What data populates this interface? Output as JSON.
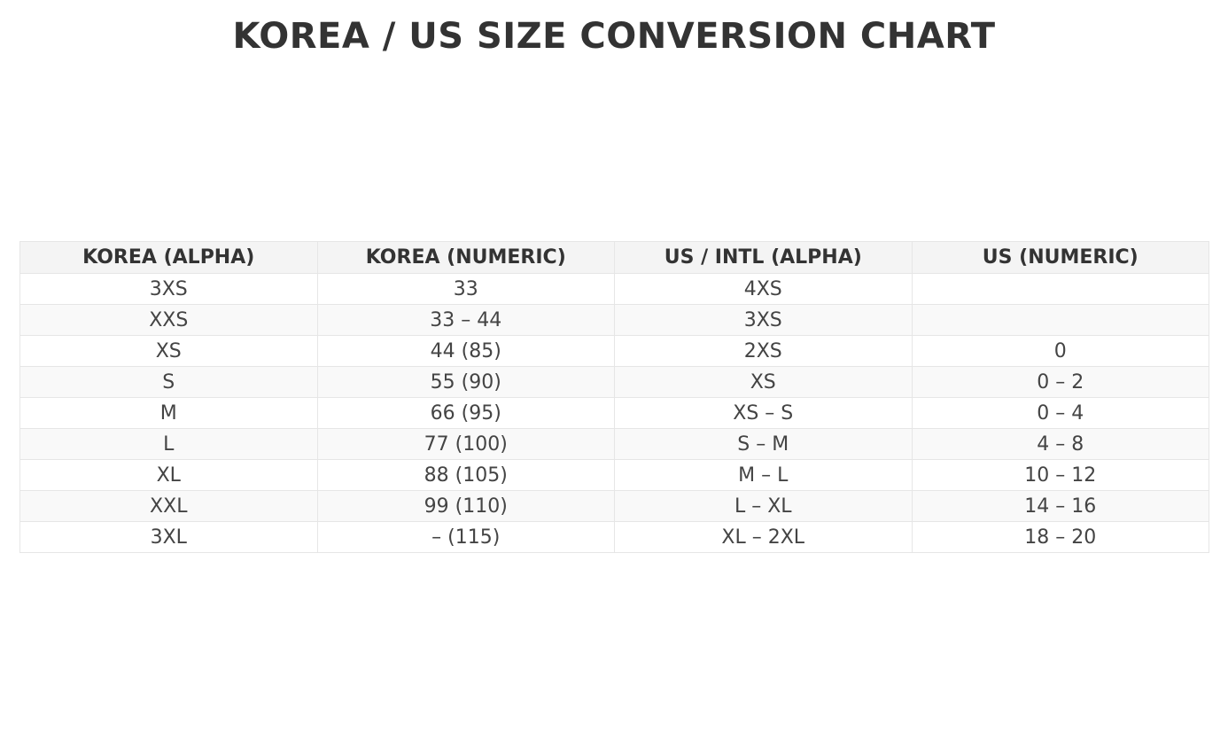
{
  "chart_data": {
    "type": "table",
    "title": "KOREA / US SIZE CONVERSION CHART",
    "columns": [
      "KOREA (ALPHA)",
      "KOREA (NUMERIC)",
      "US / INTL (ALPHA)",
      "US (NUMERIC)"
    ],
    "rows": [
      [
        "3XS",
        "33",
        "4XS",
        ""
      ],
      [
        "XXS",
        "33 – 44",
        "3XS",
        ""
      ],
      [
        "XS",
        "44 (85)",
        "2XS",
        "0"
      ],
      [
        "S",
        "55 (90)",
        "XS",
        "0 – 2"
      ],
      [
        "M",
        "66 (95)",
        "XS – S",
        "0 – 4"
      ],
      [
        "L",
        "77 (100)",
        "S – M",
        "4 – 8"
      ],
      [
        "XL",
        "88 (105)",
        "M – L",
        "10 – 12"
      ],
      [
        "XXL",
        "99 (110)",
        "L – XL",
        "14 – 16"
      ],
      [
        "3XL",
        "– (115)",
        "XL – 2XL",
        "18 – 20"
      ]
    ],
    "colors": {
      "header_bg": "#f4f4f4",
      "stripe_bg": "#f9f9f9",
      "border": "#e6e6e6",
      "text": "#444444"
    }
  }
}
